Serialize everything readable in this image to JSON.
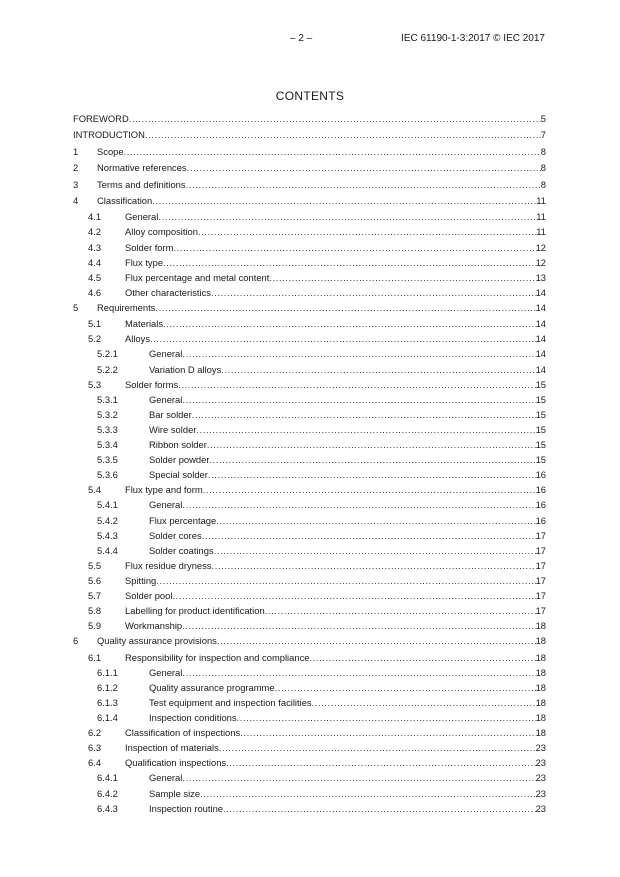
{
  "header": {
    "page_number": "– 2 –",
    "document_id": "IEC 61190-1-3:2017 © IEC 2017"
  },
  "title": "CONTENTS",
  "toc": [
    {
      "level": 0,
      "num": "",
      "text": "FOREWORD",
      "page": "5"
    },
    {
      "level": 0,
      "num": "",
      "text": "INTRODUCTION",
      "page": "7"
    },
    {
      "level": 0,
      "num": "1",
      "text": "Scope",
      "page": "8"
    },
    {
      "level": 0,
      "num": "2",
      "text": "Normative references",
      "page": "8"
    },
    {
      "level": 0,
      "num": "3",
      "text": "Terms and definitions",
      "page": "8"
    },
    {
      "level": 0,
      "num": "4",
      "text": "Classification",
      "page": "11"
    },
    {
      "level": 1,
      "num": "4.1",
      "text": "General",
      "page": "11"
    },
    {
      "level": 1,
      "num": "4.2",
      "text": "Alloy composition",
      "page": "11"
    },
    {
      "level": 1,
      "num": "4.3",
      "text": "Solder form",
      "page": "12"
    },
    {
      "level": 1,
      "num": "4.4",
      "text": "Flux type",
      "page": "12"
    },
    {
      "level": 1,
      "num": "4.5",
      "text": "Flux percentage and metal content",
      "page": "13"
    },
    {
      "level": 1,
      "num": "4.6",
      "text": "Other characteristics",
      "page": "14"
    },
    {
      "level": 0,
      "num": "5",
      "text": "Requirements",
      "page": "14"
    },
    {
      "level": 1,
      "num": "5.1",
      "text": "Materials",
      "page": "14"
    },
    {
      "level": 1,
      "num": "5.2",
      "text": "Alloys",
      "page": "14"
    },
    {
      "level": 2,
      "num": "5.2.1",
      "text": "General",
      "page": "14"
    },
    {
      "level": 2,
      "num": "5.2.2",
      "text": "Variation D alloys",
      "page": "14"
    },
    {
      "level": 1,
      "num": "5.3",
      "text": "Solder forms",
      "page": "15"
    },
    {
      "level": 2,
      "num": "5.3.1",
      "text": "General",
      "page": "15"
    },
    {
      "level": 2,
      "num": "5.3.2",
      "text": "Bar solder",
      "page": "15"
    },
    {
      "level": 2,
      "num": "5.3.3",
      "text": "Wire solder",
      "page": "15"
    },
    {
      "level": 2,
      "num": "5.3.4",
      "text": "Ribbon solder",
      "page": "15"
    },
    {
      "level": 2,
      "num": "5.3.5",
      "text": "Solder powder",
      "page": "15"
    },
    {
      "level": 2,
      "num": "5.3.6",
      "text": "Special solder",
      "page": "16"
    },
    {
      "level": 1,
      "num": "5.4",
      "text": "Flux type and form",
      "page": "16"
    },
    {
      "level": 2,
      "num": "5.4.1",
      "text": "General",
      "page": "16"
    },
    {
      "level": 2,
      "num": "5.4.2",
      "text": "Flux percentage",
      "page": "16"
    },
    {
      "level": 2,
      "num": "5.4.3",
      "text": "Solder cores",
      "page": "17"
    },
    {
      "level": 2,
      "num": "5.4.4",
      "text": "Solder coatings",
      "page": "17"
    },
    {
      "level": 1,
      "num": "5.5",
      "text": "Flux residue dryness",
      "page": "17"
    },
    {
      "level": 1,
      "num": "5.6",
      "text": "Spitting",
      "page": "17"
    },
    {
      "level": 1,
      "num": "5.7",
      "text": "Solder pool",
      "page": "17"
    },
    {
      "level": 1,
      "num": "5.8",
      "text": "Labelling for product identification",
      "page": "17"
    },
    {
      "level": 1,
      "num": "5.9",
      "text": "Workmanship",
      "page": "18"
    },
    {
      "level": 0,
      "num": "6",
      "text": "Quality assurance provisions",
      "page": "18"
    },
    {
      "level": 1,
      "num": "6.1",
      "text": "Responsibility for inspection and compliance",
      "page": "18"
    },
    {
      "level": 2,
      "num": "6.1.1",
      "text": "General",
      "page": "18"
    },
    {
      "level": 2,
      "num": "6.1.2",
      "text": "Quality assurance programme",
      "page": "18"
    },
    {
      "level": 2,
      "num": "6.1.3",
      "text": "Test equipment and inspection facilities",
      "page": "18"
    },
    {
      "level": 2,
      "num": "6.1.4",
      "text": "Inspection conditions",
      "page": "18"
    },
    {
      "level": 1,
      "num": "6.2",
      "text": "Classification of inspections",
      "page": "18"
    },
    {
      "level": 1,
      "num": "6.3",
      "text": "Inspection of materials",
      "page": "23"
    },
    {
      "level": 1,
      "num": "6.4",
      "text": "Qualification inspections",
      "page": "23"
    },
    {
      "level": 2,
      "num": "6.4.1",
      "text": "General",
      "page": "23"
    },
    {
      "level": 2,
      "num": "6.4.2",
      "text": "Sample size",
      "page": "23"
    },
    {
      "level": 2,
      "num": "6.4.3",
      "text": "Inspection routine",
      "page": "23"
    }
  ]
}
